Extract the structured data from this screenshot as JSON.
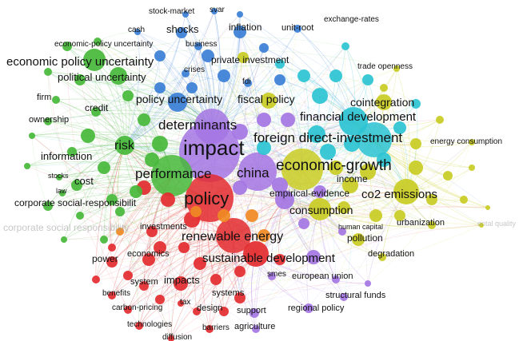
{
  "clusters": {
    "green": {
      "color": "#47b83a"
    },
    "red": {
      "color": "#e32b2f"
    },
    "blue": {
      "color": "#3b7fd6"
    },
    "yellow": {
      "color": "#c9cc24"
    },
    "purple": {
      "color": "#a476e3"
    },
    "cyan": {
      "color": "#2cc3d3"
    },
    "orange": {
      "color": "#f08a24"
    }
  },
  "labels": {
    "stock_market": "stock-market",
    "svar": "svar",
    "exchange_rates": "exchange-rates",
    "cash": "cash",
    "shocks": "shocks",
    "inflation": "inflation",
    "unit_root": "unit-root",
    "economic_policy_uncertainty_small": "economic-policy uncertainty",
    "business": "business",
    "economic_policy_uncertainty": "economic policy uncertainty",
    "private_investment": "private investment",
    "trade_openness": "trade openness",
    "crises": "crises",
    "political_uncertainty": "political uncertainty",
    "fdi": "fdi",
    "firm": "firm",
    "credit": "credit",
    "policy_uncertainty": "policy uncertainty",
    "fiscal_policy": "fiscal policy",
    "cointegration": "cointegration",
    "ownership": "ownership",
    "financial_development": "financial development",
    "determinants": "determinants",
    "foreign_direct_investment": "foreign direct-investment",
    "energy_consumption": "energy consumption",
    "risk": "risk",
    "impact": "impact",
    "information": "information",
    "economic_growth": "economic-growth",
    "stocks": "stocks",
    "performance": "performance",
    "china": "china",
    "cost": "cost",
    "income": "income",
    "law": "law",
    "policy": "policy",
    "empirical_evidence": "empirical-evidence",
    "co2_emissions": "co2 emissions",
    "corporate_social_responsibility": "corporate social-responsibilit",
    "consumption": "consumption",
    "corporate_social_responsibility_faded": "corporate social responsibility",
    "investments": "investments",
    "urbanization": "urbanization",
    "human_capital": "human capital",
    "renewable_energy": "renewable energy",
    "pollution": "pollution",
    "economics": "economics",
    "degradation": "degradation",
    "power": "power",
    "sustainable_development": "sustainable development",
    "smes": "smes",
    "european_union": "european union",
    "system": "system",
    "impacts": "impacts",
    "benefits": "benefits",
    "systems": "systems",
    "structural_funds": "structural funds",
    "tax": "tax",
    "carbon_pricing": "carbon-pricing",
    "design": "design",
    "support": "support",
    "regional_policy": "regional policy",
    "technologies": "technologies",
    "barriers": "barriers",
    "agriculture": "agriculture",
    "diffusion": "diffusion",
    "environmental_quality": "ental quality"
  }
}
